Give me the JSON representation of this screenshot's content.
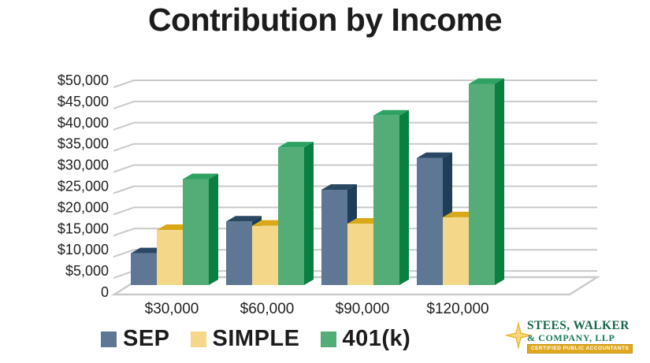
{
  "title": "Contribution by Income",
  "chart_data": {
    "type": "bar",
    "variant": "3d-clustered-column",
    "title": "Contribution by Income",
    "categories": [
      "$30,000",
      "$60,000",
      "$90,000",
      "$120,000"
    ],
    "series": [
      {
        "name": "SEP",
        "values": [
          7500,
          15000,
          22500,
          30000
        ],
        "shades": {
          "front": "#5d7795",
          "top": "#2a4763",
          "side": "#1f3c58"
        }
      },
      {
        "name": "SIMPLE",
        "values": [
          13000,
          14000,
          14500,
          16000
        ],
        "shades": {
          "front": "#f5d78a",
          "top": "#d8a817",
          "side": "#dfb33c"
        }
      },
      {
        "name": "401(k)",
        "values": [
          25000,
          32500,
          40000,
          47500
        ],
        "shades": {
          "front": "#54ac76",
          "top": "#2fa263",
          "side": "#0a8040"
        }
      }
    ],
    "ylim": [
      0,
      50000
    ],
    "ytick_step": 5000,
    "ytick_labels": [
      "0",
      "$5,000",
      "$10,000",
      "$15,000",
      "$20,000",
      "$25,000",
      "$30,000",
      "$35,000",
      "$40,000",
      "$45,000",
      "$50,000"
    ],
    "grid": true,
    "legend_position": "bottom"
  },
  "legend": {
    "items": [
      {
        "label": "SEP",
        "color": "#5d7795"
      },
      {
        "label": "SIMPLE",
        "color": "#f5d78a"
      },
      {
        "label": "401(k)",
        "color": "#54ac76"
      }
    ]
  },
  "colors": {
    "background": "#ffffff",
    "gridline": "#c9c9c9",
    "axis_text": "#1f1f1f",
    "title_text": "#1c1c1c",
    "logo_green": "#17684c",
    "logo_gold": "#dfa81f"
  },
  "logo": {
    "name_line1": "STEES, WALKER",
    "name_line2": "& COMPANY, LLP",
    "banner": "CERTIFIED PUBLIC ACCOUNTANTS"
  }
}
